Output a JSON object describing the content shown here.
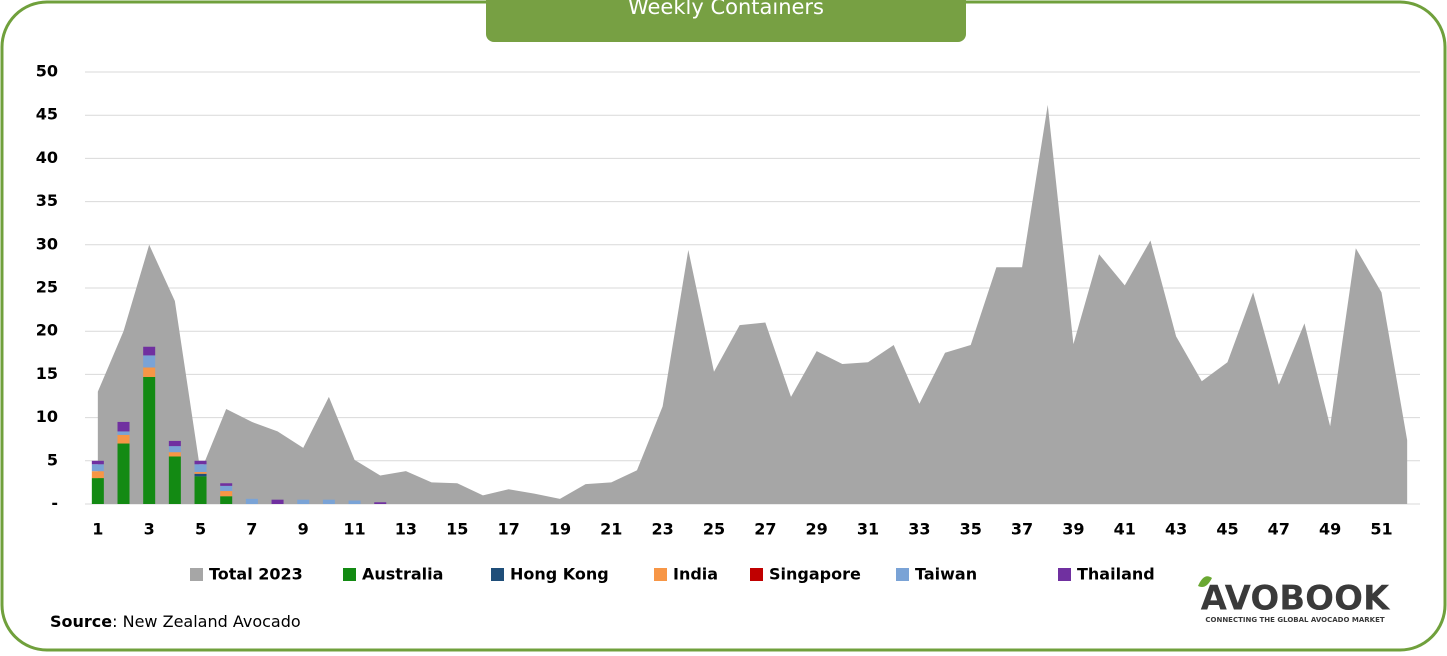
{
  "chart_data": {
    "type": "combo",
    "title": "Weekly Containers",
    "x": [
      1,
      2,
      3,
      4,
      5,
      6,
      7,
      8,
      9,
      10,
      11,
      12,
      13,
      14,
      15,
      16,
      17,
      18,
      19,
      20,
      21,
      22,
      23,
      24,
      25,
      26,
      27,
      28,
      29,
      30,
      31,
      32,
      33,
      34,
      35,
      36,
      37,
      38,
      39,
      40,
      41,
      42,
      43,
      44,
      45,
      46,
      47,
      48,
      49,
      50,
      51,
      52
    ],
    "xlim": [
      0.5,
      52.5
    ],
    "xticks": [
      1,
      3,
      5,
      7,
      9,
      11,
      13,
      15,
      17,
      19,
      21,
      23,
      25,
      27,
      29,
      31,
      33,
      35,
      37,
      39,
      41,
      43,
      45,
      47,
      49,
      51
    ],
    "ylim": [
      0,
      50
    ],
    "yticks": [
      {
        "value": 0,
        "label": "-"
      },
      5,
      10,
      15,
      20,
      25,
      30,
      35,
      40,
      45,
      50
    ],
    "grid": true,
    "series": [
      {
        "name": "Total 2023",
        "type": "area",
        "color": "#a6a6a6",
        "values": [
          13,
          20,
          30,
          23.5,
          3.7,
          11,
          9.5,
          8.4,
          6.5,
          12.4,
          5.1,
          3.3,
          3.8,
          2.5,
          2.4,
          1,
          1.7,
          1.2,
          0.6,
          2.3,
          2.5,
          3.9,
          11.3,
          29.4,
          15.3,
          20.7,
          21,
          12.4,
          17.7,
          16.2,
          16.4,
          18.4,
          11.6,
          17.5,
          18.4,
          27.4,
          27.4,
          46.2,
          18.5,
          28.9,
          25.3,
          30.5,
          19.4,
          14.2,
          16.4,
          24.5,
          13.8,
          20.9,
          9,
          29.6,
          24.5,
          7.4
        ]
      },
      {
        "name": "Australia",
        "type": "bar",
        "color": "#138a13",
        "values": [
          3,
          7,
          14.7,
          5.5,
          3.2,
          0.9,
          0,
          0,
          0,
          0,
          0,
          0,
          0,
          0,
          0,
          0,
          0,
          0,
          0,
          0,
          0,
          0,
          0,
          0,
          0,
          0,
          0,
          0,
          0,
          0,
          0,
          0,
          0,
          0,
          0,
          0,
          0,
          0,
          0,
          0,
          0,
          0,
          0,
          0,
          0,
          0,
          0,
          0,
          0,
          0,
          0,
          0
        ]
      },
      {
        "name": "Hong Kong",
        "type": "bar",
        "color": "#1f4e79",
        "values": [
          0,
          0,
          0,
          0,
          0.3,
          0,
          0,
          0,
          0,
          0,
          0,
          0,
          0,
          0,
          0,
          0,
          0,
          0,
          0,
          0,
          0,
          0,
          0,
          0,
          0,
          0,
          0,
          0,
          0,
          0,
          0,
          0,
          0,
          0,
          0,
          0,
          0,
          0,
          0,
          0,
          0,
          0,
          0,
          0,
          0,
          0,
          0,
          0,
          0,
          0,
          0,
          0
        ]
      },
      {
        "name": "India",
        "type": "bar",
        "color": "#f79646",
        "values": [
          0.8,
          1,
          1.1,
          0.5,
          0.2,
          0.6,
          0,
          0,
          0,
          0,
          0,
          0,
          0,
          0,
          0,
          0,
          0,
          0,
          0,
          0,
          0,
          0,
          0,
          0,
          0,
          0,
          0,
          0,
          0,
          0,
          0,
          0,
          0,
          0,
          0,
          0,
          0,
          0,
          0,
          0,
          0,
          0,
          0,
          0,
          0,
          0,
          0,
          0,
          0,
          0,
          0,
          0
        ]
      },
      {
        "name": "Singapore",
        "type": "bar",
        "color": "#c00000",
        "values": [
          0,
          0,
          0,
          0,
          0,
          0,
          0,
          0,
          0,
          0,
          0,
          0,
          0,
          0,
          0,
          0,
          0,
          0,
          0,
          0,
          0,
          0,
          0,
          0,
          0,
          0,
          0,
          0,
          0,
          0,
          0,
          0,
          0,
          0,
          0,
          0,
          0,
          0,
          0,
          0,
          0,
          0,
          0,
          0,
          0,
          0,
          0,
          0,
          0,
          0,
          0,
          0
        ]
      },
      {
        "name": "Taiwan",
        "type": "bar",
        "color": "#7aa3d6",
        "values": [
          0.8,
          0.4,
          1.4,
          0.7,
          0.9,
          0.6,
          0.6,
          0,
          0.5,
          0.5,
          0.4,
          0,
          0,
          0,
          0,
          0,
          0,
          0,
          0,
          0,
          0,
          0,
          0,
          0,
          0,
          0,
          0,
          0,
          0,
          0,
          0,
          0,
          0,
          0,
          0,
          0,
          0,
          0,
          0,
          0,
          0,
          0,
          0,
          0,
          0,
          0,
          0,
          0,
          0,
          0,
          0,
          0
        ]
      },
      {
        "name": "Thailand",
        "type": "bar",
        "color": "#7030a0",
        "values": [
          0.4,
          1.1,
          1,
          0.6,
          0.4,
          0.3,
          0,
          0.5,
          0,
          0,
          0,
          0.2,
          0,
          0,
          0,
          0,
          0,
          0,
          0,
          0,
          0,
          0,
          0,
          0,
          0,
          0,
          0,
          0,
          0,
          0,
          0,
          0,
          0,
          0,
          0,
          0,
          0,
          0,
          0,
          0,
          0,
          0,
          0,
          0,
          0,
          0,
          0,
          0,
          0,
          0,
          0,
          0
        ]
      }
    ]
  },
  "source_label": "Source",
  "source": ": New Zealand Avocado",
  "logo": {
    "name": "AVOBOOK",
    "tagline": "CONNECTING THE GLOBAL AVOCADO MARKET"
  }
}
